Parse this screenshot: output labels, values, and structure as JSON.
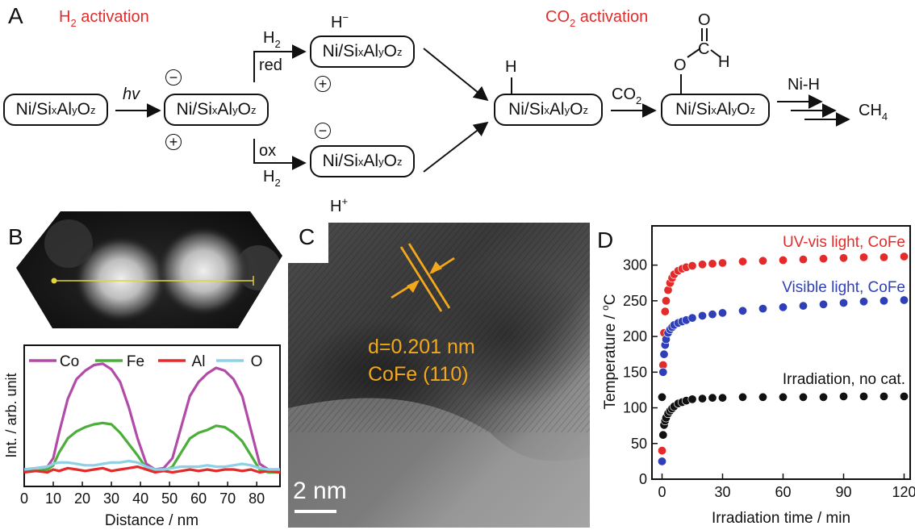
{
  "panelA": {
    "letter": "A",
    "h2_activation": {
      "main": "H",
      "sub": "2",
      "rest": " activation"
    },
    "co2_activation": {
      "main": "CO",
      "sub": "2",
      "rest": " activation"
    },
    "hv": "hv",
    "red": "red",
    "ox": "ox",
    "h2": {
      "main": "H",
      "sub": "2"
    },
    "co2": {
      "main": "CO",
      "sub": "2"
    },
    "nih": "Ni-H",
    "ch4": {
      "main": "CH",
      "sub": "4"
    },
    "h_minus": {
      "main": "H",
      "sup": "−"
    },
    "h_plus": {
      "main": "H",
      "sup": "+"
    },
    "h_atom": "H",
    "o_atom": "O",
    "c_atom": "C",
    "minus": "−",
    "plus": "+",
    "catalyst": {
      "ni": "Ni/Si",
      "x": "x",
      "al": "Al",
      "y": "y",
      "o": "O",
      "z": "z"
    }
  },
  "panelB": {
    "letter": "B",
    "xlabel": "Distance / nm",
    "ylabel": "Int. / arb. unit",
    "legend": [
      {
        "name": "Co",
        "color": "#b24aa8"
      },
      {
        "name": "Fe",
        "color": "#4cae3a"
      },
      {
        "name": "Al",
        "color": "#e32b2b"
      },
      {
        "name": "O",
        "color": "#8fd0e6"
      }
    ]
  },
  "panelC": {
    "letter": "C",
    "d_spacing": "d=0.201 nm",
    "plane": "CoFe (110)",
    "scale": "2 nm"
  },
  "panelD": {
    "letter": "D",
    "ylabel": "Temperature / °C",
    "ylabel_main": "Temperature / ",
    "ylabel_sup": "o",
    "ylabel_unit": "C",
    "xlabel": "Irradiation time / min"
  },
  "chart_data": [
    {
      "type": "line",
      "panel": "B",
      "xlabel": "Distance / nm",
      "ylabel": "Int. / arb. unit",
      "xlim": [
        0,
        88
      ],
      "ylim": [
        0,
        1
      ],
      "xticks": [
        0,
        10,
        20,
        30,
        40,
        50,
        60,
        70,
        80
      ],
      "legend": "top",
      "series": [
        {
          "name": "Co",
          "color": "#b24aa8",
          "x": [
            0,
            4,
            8,
            10,
            12,
            15,
            18,
            21,
            24,
            27,
            30,
            33,
            36,
            39,
            42,
            45,
            48,
            51,
            54,
            57,
            60,
            63,
            66,
            69,
            72,
            75,
            78,
            81,
            84,
            88
          ],
          "y": [
            0.12,
            0.13,
            0.14,
            0.2,
            0.38,
            0.62,
            0.76,
            0.82,
            0.86,
            0.87,
            0.83,
            0.74,
            0.56,
            0.34,
            0.16,
            0.12,
            0.13,
            0.2,
            0.42,
            0.64,
            0.74,
            0.8,
            0.84,
            0.82,
            0.76,
            0.64,
            0.4,
            0.16,
            0.12,
            0.12
          ]
        },
        {
          "name": "Fe",
          "color": "#4cae3a",
          "x": [
            0,
            4,
            8,
            10,
            12,
            15,
            18,
            21,
            24,
            27,
            30,
            33,
            36,
            39,
            42,
            45,
            48,
            51,
            54,
            57,
            60,
            63,
            66,
            69,
            72,
            75,
            78,
            81,
            84,
            88
          ],
          "y": [
            0.11,
            0.11,
            0.12,
            0.15,
            0.24,
            0.34,
            0.39,
            0.42,
            0.44,
            0.45,
            0.44,
            0.38,
            0.3,
            0.22,
            0.13,
            0.11,
            0.11,
            0.14,
            0.24,
            0.34,
            0.38,
            0.4,
            0.43,
            0.42,
            0.38,
            0.32,
            0.22,
            0.12,
            0.1,
            0.1
          ]
        },
        {
          "name": "Al",
          "color": "#e32b2b",
          "x": [
            0,
            4,
            8,
            10,
            12,
            15,
            18,
            21,
            24,
            27,
            30,
            33,
            36,
            39,
            42,
            45,
            48,
            51,
            54,
            57,
            60,
            63,
            66,
            69,
            72,
            75,
            78,
            81,
            84,
            88
          ],
          "y": [
            0.1,
            0.11,
            0.1,
            0.12,
            0.11,
            0.13,
            0.12,
            0.11,
            0.12,
            0.13,
            0.11,
            0.12,
            0.13,
            0.14,
            0.12,
            0.1,
            0.11,
            0.1,
            0.11,
            0.12,
            0.11,
            0.12,
            0.11,
            0.12,
            0.12,
            0.11,
            0.12,
            0.1,
            0.11,
            0.1
          ]
        },
        {
          "name": "O",
          "color": "#8fd0e6",
          "x": [
            0,
            4,
            8,
            10,
            12,
            15,
            18,
            21,
            24,
            27,
            30,
            33,
            36,
            39,
            42,
            45,
            48,
            51,
            54,
            57,
            60,
            63,
            66,
            69,
            72,
            75,
            78,
            81,
            84,
            88
          ],
          "y": [
            0.12,
            0.13,
            0.14,
            0.16,
            0.17,
            0.17,
            0.16,
            0.15,
            0.15,
            0.16,
            0.17,
            0.17,
            0.18,
            0.17,
            0.14,
            0.12,
            0.12,
            0.13,
            0.14,
            0.14,
            0.14,
            0.15,
            0.14,
            0.14,
            0.15,
            0.16,
            0.15,
            0.13,
            0.12,
            0.12
          ]
        }
      ]
    },
    {
      "type": "scatter",
      "panel": "D",
      "xlabel": "Irradiation time / min",
      "ylabel": "Temperature / °C",
      "xlim": [
        -5,
        123
      ],
      "ylim": [
        0,
        355
      ],
      "xticks": [
        0,
        30,
        60,
        90,
        120
      ],
      "yticks": [
        0,
        50,
        100,
        150,
        200,
        250,
        300
      ],
      "series": [
        {
          "name": "UV-vis light, CoFe",
          "color": "#e32b2b",
          "x": [
            0,
            0.5,
            1,
            1.5,
            2,
            3,
            4,
            5,
            6,
            8,
            10,
            12,
            15,
            20,
            25,
            30,
            40,
            50,
            60,
            70,
            80,
            90,
            100,
            110,
            120
          ],
          "y": [
            40,
            160,
            205,
            235,
            250,
            265,
            275,
            282,
            287,
            292,
            295,
            297,
            299,
            301,
            302,
            303,
            305,
            306,
            307,
            308,
            309,
            310,
            311,
            311,
            312
          ]
        },
        {
          "name": "Visible light, CoFe",
          "color": "#2f3fb8",
          "x": [
            0,
            0.5,
            1,
            1.5,
            2,
            3,
            4,
            5,
            6,
            8,
            10,
            12,
            15,
            20,
            25,
            30,
            40,
            50,
            60,
            70,
            80,
            90,
            100,
            110,
            120
          ],
          "y": [
            25,
            150,
            175,
            188,
            196,
            205,
            210,
            213,
            216,
            219,
            221,
            223,
            226,
            229,
            231,
            233,
            236,
            239,
            241,
            243,
            245,
            247,
            249,
            250,
            251
          ]
        },
        {
          "name": "Irradiation, no cat.",
          "color": "#111111",
          "x": [
            0,
            0.5,
            1,
            1.5,
            2,
            3,
            4,
            5,
            6,
            8,
            10,
            12,
            15,
            20,
            25,
            30,
            40,
            50,
            60,
            70,
            80,
            90,
            100,
            110,
            120
          ],
          "y": [
            115,
            62,
            76,
            82,
            86,
            92,
            96,
            99,
            102,
            106,
            108,
            110,
            112,
            113,
            114,
            114,
            115,
            115,
            115,
            115,
            115,
            116,
            116,
            116,
            116
          ]
        }
      ]
    }
  ]
}
